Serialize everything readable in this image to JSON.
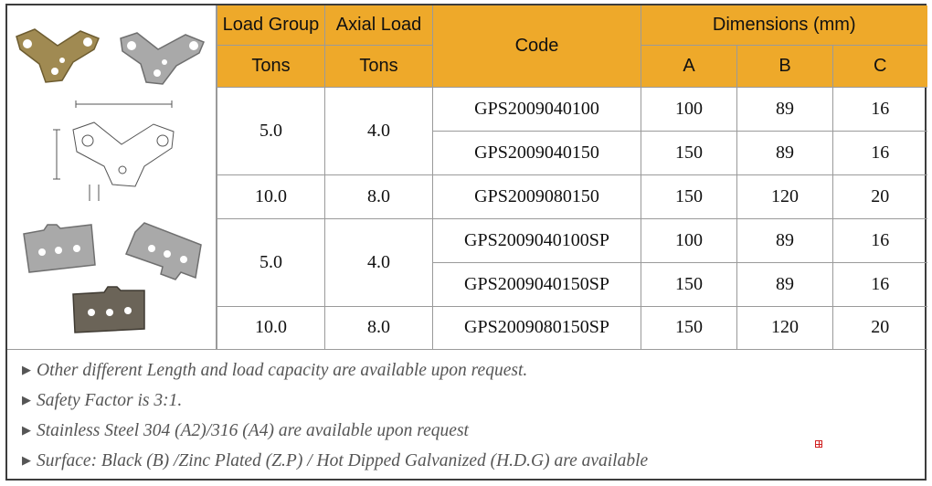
{
  "table": {
    "headers": {
      "load_group": "Load Group",
      "axial_load": "Axial Load",
      "code": "Code",
      "dimensions": "Dimensions (mm)",
      "load_group_unit": "Tons",
      "axial_load_unit": "Tons",
      "dim_a": "A",
      "dim_b": "B",
      "dim_c": "C"
    },
    "groups": [
      {
        "load_group": "5.0",
        "axial_load": "4.0"
      },
      {
        "load_group": "10.0",
        "axial_load": "8.0"
      },
      {
        "load_group": "5.0",
        "axial_load": "4.0"
      },
      {
        "load_group": "10.0",
        "axial_load": "8.0"
      }
    ],
    "rows": [
      {
        "code": "GPS2009040100",
        "a": "100",
        "b": "89",
        "c": "16"
      },
      {
        "code": "GPS2009040150",
        "a": "150",
        "b": "89",
        "c": "16"
      },
      {
        "code": "GPS2009080150",
        "a": "150",
        "b": "120",
        "c": "20"
      },
      {
        "code": "GPS2009040100SP",
        "a": "100",
        "b": "89",
        "c": "16"
      },
      {
        "code": "GPS2009040150SP",
        "a": "150",
        "b": "89",
        "c": "16"
      },
      {
        "code": "GPS2009080150SP",
        "a": "150",
        "b": "120",
        "c": "20"
      }
    ]
  },
  "notes": [
    "Other different Length and load capacity are available upon request.",
    "Safety Factor is 3:1.",
    "Stainless Steel 304 (A2)/316 (A4) are available upon request",
    "Surface: Black (B) /Zinc Plated (Z.P) / Hot Dipped Galvanized (H.D.G) are available"
  ],
  "bullet_icon": "triangle-right-icon",
  "colors": {
    "header": "#eea92a",
    "brass": "#a08a52",
    "zinc": "#a9a9a9",
    "dark": "#6b6458"
  }
}
